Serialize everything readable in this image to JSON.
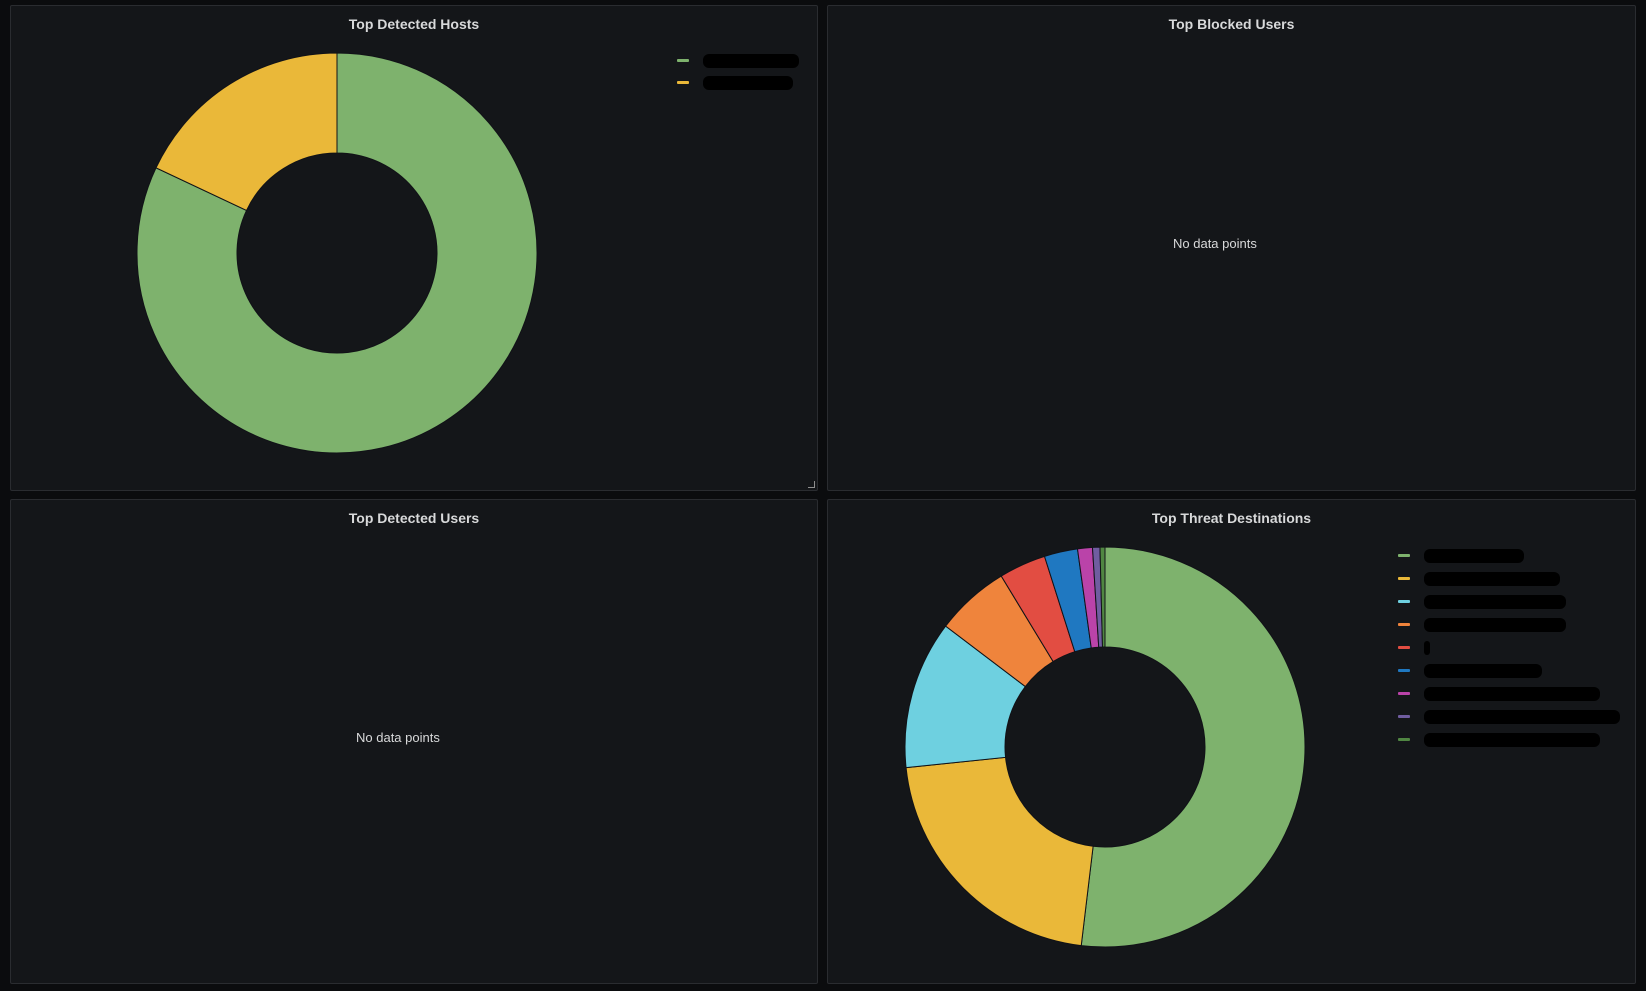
{
  "panels": {
    "top_detected_hosts": {
      "title": "Top Detected Hosts"
    },
    "top_blocked_users": {
      "title": "Top Blocked Users",
      "empty_text": "No data points"
    },
    "top_detected_users": {
      "title": "Top Detected Users",
      "empty_text": "No data points"
    },
    "top_threat_destinations": {
      "title": "Top Threat Destinations"
    }
  },
  "chart_data": [
    {
      "type": "pie",
      "title": "Top Detected Hosts",
      "style": "donut",
      "legend_position": "top-right",
      "labels_redacted": true,
      "series": [
        {
          "value": 82,
          "color": "#7eb26d"
        },
        {
          "value": 18,
          "color": "#eab839"
        }
      ]
    },
    {
      "type": "pie",
      "title": "Top Threat Destinations",
      "style": "donut",
      "legend_position": "top-right",
      "labels_redacted": true,
      "series": [
        {
          "value": 52.0,
          "color": "#7eb26d"
        },
        {
          "value": 21.5,
          "color": "#eab839"
        },
        {
          "value": 12.0,
          "color": "#6ed0e0"
        },
        {
          "value": 6.0,
          "color": "#ef843c"
        },
        {
          "value": 3.8,
          "color": "#e24d42"
        },
        {
          "value": 2.7,
          "color": "#1f78c1"
        },
        {
          "value": 1.2,
          "color": "#ba43a9"
        },
        {
          "value": 0.6,
          "color": "#705da0"
        },
        {
          "value": 0.4,
          "color": "#508642"
        }
      ]
    }
  ]
}
